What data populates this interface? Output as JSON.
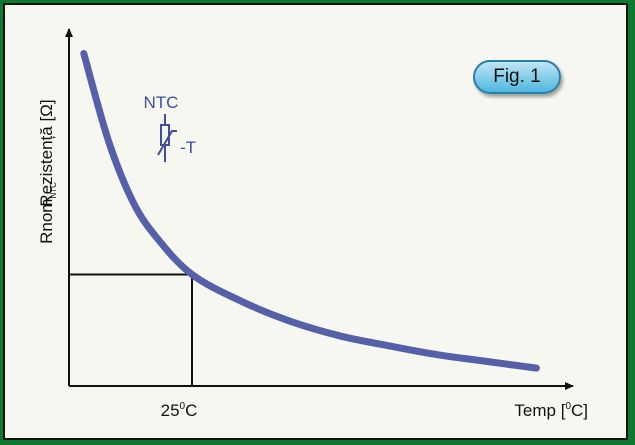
{
  "chart_data": {
    "type": "line",
    "title": "",
    "xlabel_main": "Temp [",
    "xlabel_unit": "0",
    "xlabel_end": "C]",
    "ylabel": "Rezistență [Ω]",
    "x_tick_main": "25",
    "x_tick_unit": "0",
    "x_tick_end": "C",
    "y_tick_main": "Rnom",
    "y_tick_sub": "NTC",
    "reference_point": {
      "x": 25,
      "y": 1
    },
    "series": [
      {
        "curve": "exponential-decay",
        "color": "#5560a8",
        "x": [
          3,
          8,
          13,
          18,
          25,
          35,
          45,
          55,
          65,
          75,
          85,
          95
        ],
        "y": [
          2.98,
          2.2,
          1.65,
          1.32,
          1.0,
          0.76,
          0.58,
          0.45,
          0.36,
          0.28,
          0.22,
          0.16
        ]
      }
    ],
    "xlim": [
      0,
      100
    ],
    "ylim": [
      0,
      3.2
    ],
    "grid": false
  },
  "symbol": {
    "label": "NTC",
    "suffix": "-T"
  },
  "badge": {
    "label": "Fig. 1"
  },
  "colors": {
    "curve": "#5560a8",
    "background": "#f7f7f2",
    "border_green": "#0d7a2f",
    "badge": "#4fb7dd"
  }
}
